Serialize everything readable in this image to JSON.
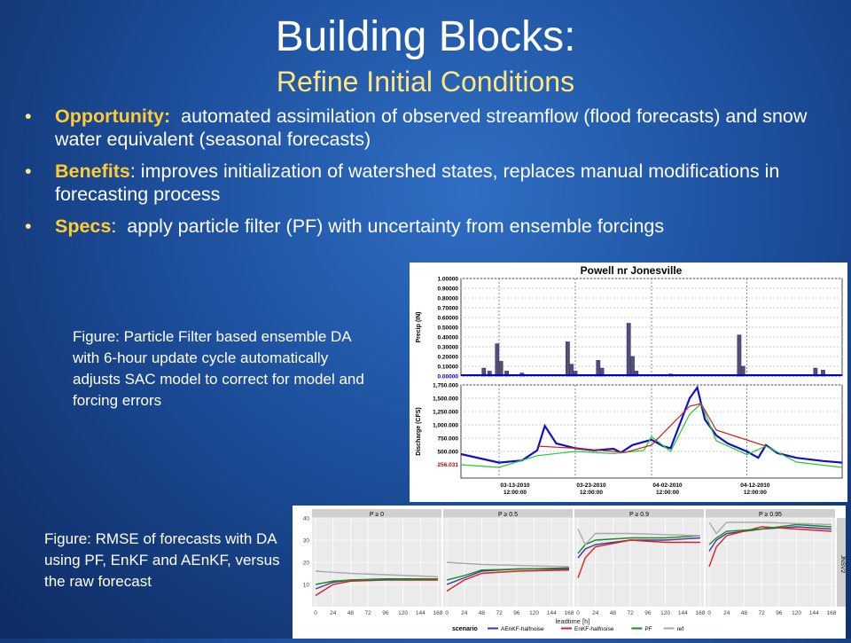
{
  "slide": {
    "title": "Building Blocks:",
    "subtitle": "Refine Initial Conditions",
    "bullets": [
      {
        "label": "Opportunity:",
        "sep": "",
        "text": "automated assimilation of observed streamflow (flood forecasts) and snow water equivalent (seasonal forecasts)"
      },
      {
        "label": "Benefits",
        "sep": ":",
        "text": "improves initialization of watershed states, replaces manual modifications in forecasting process"
      },
      {
        "label": "Specs",
        "sep": ":",
        "text": "apply particle filter (PF) with uncertainty from ensemble forcings"
      }
    ],
    "caption1": "Figure:  Particle Filter based ensemble DA with 6-hour update cycle automatically adjusts SAC model to correct for model and forcing errors",
    "caption2": "Figure:  RMSE of forecasts with DA using PF, EnKF and AEnKF, versus the raw forecast"
  },
  "chart_data": [
    {
      "type": "bar",
      "panel": "precip",
      "title": "Powell nr Jonesville",
      "ylabel": "Precip (IN)",
      "ylim": [
        0,
        1.0
      ],
      "yticks": [
        "1.00000",
        "0.90000",
        "0.80000",
        "0.70000",
        "0.60000",
        "0.50000",
        "0.40000",
        "0.30000",
        "0.20000",
        "0.10000",
        "0.00000"
      ],
      "bars": [
        {
          "x": 0.06,
          "v": 0.08
        },
        {
          "x": 0.075,
          "v": 0.05
        },
        {
          "x": 0.095,
          "v": 0.33
        },
        {
          "x": 0.105,
          "v": 0.15
        },
        {
          "x": 0.12,
          "v": 0.05
        },
        {
          "x": 0.16,
          "v": 0.03
        },
        {
          "x": 0.28,
          "v": 0.35
        },
        {
          "x": 0.29,
          "v": 0.12
        },
        {
          "x": 0.3,
          "v": 0.05
        },
        {
          "x": 0.36,
          "v": 0.16
        },
        {
          "x": 0.37,
          "v": 0.08
        },
        {
          "x": 0.44,
          "v": 0.54
        },
        {
          "x": 0.45,
          "v": 0.2
        },
        {
          "x": 0.46,
          "v": 0.05
        },
        {
          "x": 0.55,
          "v": 0.02
        },
        {
          "x": 0.73,
          "v": 0.42
        },
        {
          "x": 0.74,
          "v": 0.1
        },
        {
          "x": 0.93,
          "v": 0.08
        },
        {
          "x": 0.95,
          "v": 0.06
        }
      ]
    },
    {
      "type": "line",
      "panel": "discharge",
      "ylabel": "Discharge (CFS)",
      "ylim": [
        0,
        1750
      ],
      "yticks": [
        "1,750.000",
        "1,500.000",
        "1,250.000",
        "1,000.000",
        "750.000",
        "500.000"
      ],
      "current_value": "256.031",
      "xticks": [
        {
          "date": "03-13-2010",
          "time": "12:00:00"
        },
        {
          "date": "03-23-2010",
          "time": "12:00:00"
        },
        {
          "date": "04-02-2010",
          "time": "12:00:00"
        },
        {
          "date": "04-12-2010",
          "time": "12:00:00"
        }
      ],
      "series": [
        {
          "color": "#1010cc",
          "values": [
            [
              0,
              450
            ],
            [
              0.1,
              290
            ],
            [
              0.16,
              330
            ],
            [
              0.2,
              520
            ],
            [
              0.22,
              980
            ],
            [
              0.25,
              650
            ],
            [
              0.3,
              560
            ],
            [
              0.35,
              520
            ],
            [
              0.4,
              550
            ],
            [
              0.42,
              480
            ],
            [
              0.45,
              620
            ],
            [
              0.5,
              720
            ],
            [
              0.53,
              600
            ],
            [
              0.55,
              560
            ],
            [
              0.6,
              1500
            ],
            [
              0.62,
              1700
            ],
            [
              0.64,
              1100
            ],
            [
              0.67,
              800
            ],
            [
              0.7,
              650
            ],
            [
              0.75,
              500
            ],
            [
              0.78,
              380
            ],
            [
              0.8,
              620
            ],
            [
              0.83,
              470
            ],
            [
              0.88,
              380
            ],
            [
              0.95,
              320
            ],
            [
              1,
              290
            ]
          ]
        },
        {
          "color": "#22cc22",
          "values": [
            [
              0,
              250
            ],
            [
              0.1,
              200
            ],
            [
              0.2,
              420
            ],
            [
              0.3,
              500
            ],
            [
              0.4,
              460
            ],
            [
              0.48,
              520
            ],
            [
              0.5,
              780
            ],
            [
              0.55,
              500
            ],
            [
              0.6,
              1200
            ],
            [
              0.63,
              1400
            ],
            [
              0.67,
              700
            ],
            [
              0.75,
              440
            ],
            [
              0.8,
              600
            ],
            [
              0.88,
              300
            ],
            [
              1,
              200
            ]
          ]
        },
        {
          "color": "#cc2020",
          "values": [
            [
              0.2,
              600
            ],
            [
              0.3,
              560
            ],
            [
              0.43,
              480
            ],
            [
              0.5,
              620
            ],
            [
              0.6,
              1350
            ],
            [
              0.63,
              1400
            ],
            [
              0.67,
              900
            ],
            [
              0.8,
              600
            ]
          ]
        }
      ]
    },
    {
      "type": "line",
      "panel": "rmse",
      "xlabel": "leadtime [h]",
      "ylim": [
        0,
        40
      ],
      "yticks": [
        "40",
        "30",
        "20",
        "10"
      ],
      "xticks": [
        "0",
        "24",
        "48",
        "72",
        "96",
        "120",
        "144",
        "168"
      ],
      "facet_label": "JNSV2",
      "legend_title": "scenario",
      "categories": [
        "P ≥ 0",
        "P ≥ 0.5",
        "P ≥ 0.9",
        "P ≥ 0.95"
      ],
      "series": [
        {
          "name": "AEnKF-halfnoise",
          "color": "#3a3aa8"
        },
        {
          "name": "EnKF-halfnoise",
          "color": "#dd2020"
        },
        {
          "name": "PF",
          "color": "#1c8a1c"
        },
        {
          "name": "ref",
          "color": "#aaaaaa"
        }
      ],
      "panels": [
        {
          "lines": [
            [
              [
                0,
                8
              ],
              [
                24,
                11
              ],
              [
                48,
                12
              ],
              [
                96,
                12.5
              ],
              [
                168,
                12.5
              ]
            ],
            [
              [
                0,
                5
              ],
              [
                24,
                10
              ],
              [
                48,
                11.5
              ],
              [
                96,
                12
              ],
              [
                168,
                12
              ]
            ],
            [
              [
                0,
                10
              ],
              [
                24,
                11.5
              ],
              [
                48,
                12
              ],
              [
                168,
                12.5
              ]
            ],
            [
              [
                0,
                16
              ],
              [
                48,
                15
              ],
              [
                168,
                13.5
              ]
            ]
          ]
        },
        {
          "lines": [
            [
              [
                0,
                10
              ],
              [
                24,
                13
              ],
              [
                48,
                16
              ],
              [
                96,
                17
              ],
              [
                168,
                17
              ]
            ],
            [
              [
                0,
                7
              ],
              [
                24,
                12
              ],
              [
                48,
                15
              ],
              [
                96,
                16
              ],
              [
                168,
                16.5
              ]
            ],
            [
              [
                0,
                12
              ],
              [
                24,
                14
              ],
              [
                48,
                16.5
              ],
              [
                168,
                17.5
              ]
            ],
            [
              [
                0,
                20
              ],
              [
                48,
                19
              ],
              [
                168,
                18
              ]
            ]
          ]
        },
        {
          "lines": [
            [
              [
                0,
                22
              ],
              [
                10,
                26
              ],
              [
                24,
                28
              ],
              [
                72,
                30
              ],
              [
                120,
                30
              ],
              [
                168,
                31
              ]
            ],
            [
              [
                0,
                13
              ],
              [
                10,
                22
              ],
              [
                24,
                27
              ],
              [
                72,
                30
              ],
              [
                120,
                29
              ],
              [
                168,
                29
              ]
            ],
            [
              [
                0,
                24
              ],
              [
                10,
                28
              ],
              [
                24,
                30
              ],
              [
                72,
                31
              ],
              [
                120,
                31
              ],
              [
                168,
                32
              ]
            ],
            [
              [
                0,
                35
              ],
              [
                10,
                28
              ],
              [
                24,
                33
              ],
              [
                72,
                33
              ],
              [
                168,
                32
              ]
            ]
          ]
        },
        {
          "lines": [
            [
              [
                0,
                25
              ],
              [
                10,
                30
              ],
              [
                24,
                33
              ],
              [
                72,
                35
              ],
              [
                120,
                36
              ],
              [
                168,
                35
              ]
            ],
            [
              [
                0,
                18
              ],
              [
                10,
                27
              ],
              [
                24,
                32
              ],
              [
                72,
                36
              ],
              [
                120,
                35
              ],
              [
                168,
                34
              ]
            ],
            [
              [
                0,
                28
              ],
              [
                10,
                31
              ],
              [
                24,
                34
              ],
              [
                72,
                35
              ],
              [
                120,
                37
              ],
              [
                168,
                36
              ]
            ],
            [
              [
                0,
                38
              ],
              [
                10,
                33
              ],
              [
                24,
                38
              ],
              [
                72,
                38
              ],
              [
                168,
                37
              ]
            ]
          ]
        }
      ]
    }
  ]
}
